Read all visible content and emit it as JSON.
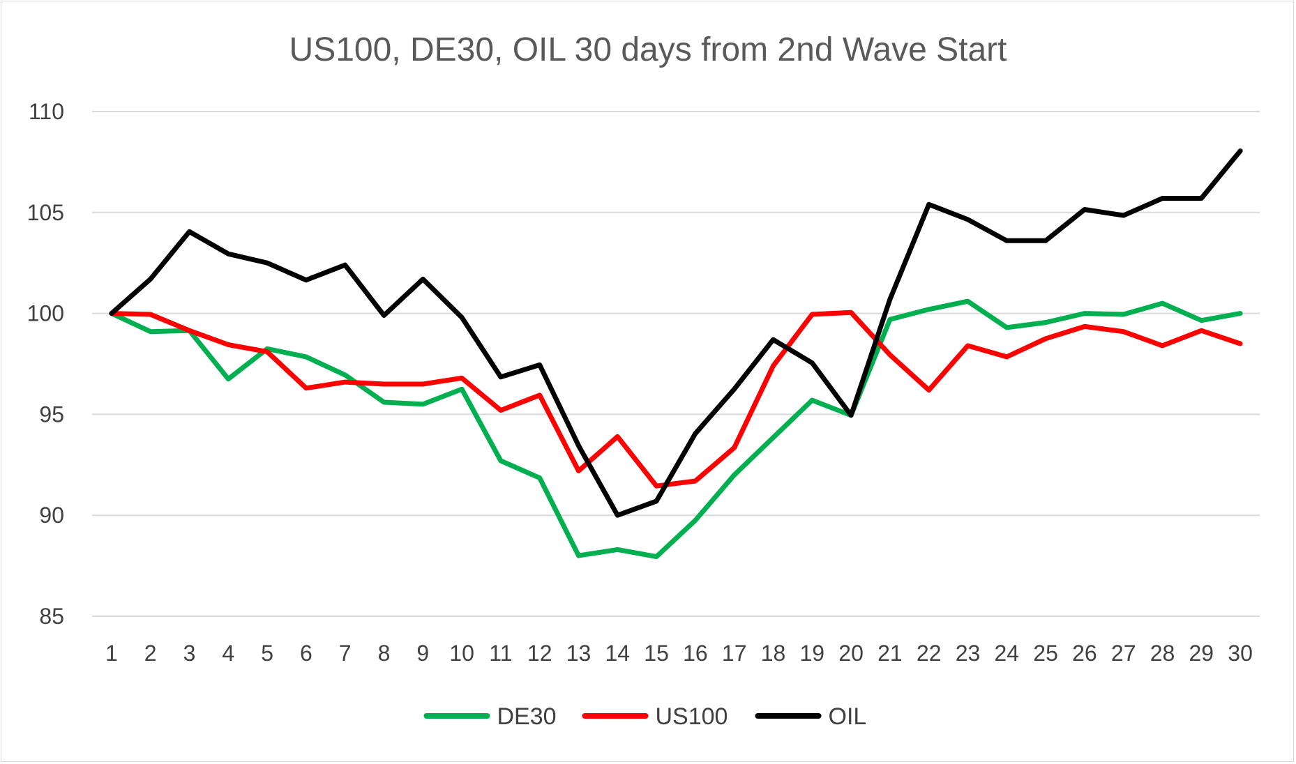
{
  "chart_data": {
    "type": "line",
    "title": "US100, DE30, OIL 30 days from 2nd Wave Start",
    "xlabel": "",
    "ylabel": "",
    "ylim": [
      85,
      110
    ],
    "yticks": [
      85,
      90,
      95,
      100,
      105,
      110
    ],
    "grid": true,
    "legend_position": "bottom",
    "categories": [
      "1",
      "2",
      "3",
      "4",
      "5",
      "6",
      "7",
      "8",
      "9",
      "10",
      "11",
      "12",
      "13",
      "14",
      "15",
      "16",
      "17",
      "18",
      "19",
      "20",
      "21",
      "22",
      "23",
      "24",
      "25",
      "26",
      "27",
      "28",
      "29",
      "30"
    ],
    "series": [
      {
        "name": "DE30",
        "color": "#00b050",
        "values": [
          100,
          99.1,
          99.15,
          96.75,
          98.25,
          97.85,
          96.95,
          95.6,
          95.5,
          96.25,
          92.7,
          91.85,
          88.0,
          88.3,
          87.95,
          89.75,
          92.0,
          93.85,
          95.7,
          94.95,
          99.7,
          100.2,
          100.6,
          99.3,
          99.55,
          100.0,
          99.95,
          100.5,
          99.65,
          100.0
        ]
      },
      {
        "name": "US100",
        "color": "#ff0000",
        "values": [
          100,
          99.95,
          99.15,
          98.45,
          98.1,
          96.3,
          96.6,
          96.5,
          96.5,
          96.8,
          95.2,
          95.95,
          92.2,
          93.9,
          91.45,
          91.7,
          93.35,
          97.4,
          99.95,
          100.05,
          97.95,
          96.2,
          98.4,
          97.85,
          98.75,
          99.35,
          99.1,
          98.4,
          99.15,
          98.5
        ]
      },
      {
        "name": "OIL",
        "color": "#000000",
        "values": [
          100,
          101.7,
          104.05,
          102.95,
          102.5,
          101.65,
          102.4,
          99.9,
          101.7,
          99.8,
          96.85,
          97.45,
          93.45,
          90.0,
          90.7,
          94.05,
          96.25,
          98.7,
          97.55,
          94.95,
          100.7,
          105.4,
          104.65,
          103.6,
          103.6,
          105.15,
          104.85,
          105.7,
          105.7,
          108.05
        ]
      }
    ]
  }
}
